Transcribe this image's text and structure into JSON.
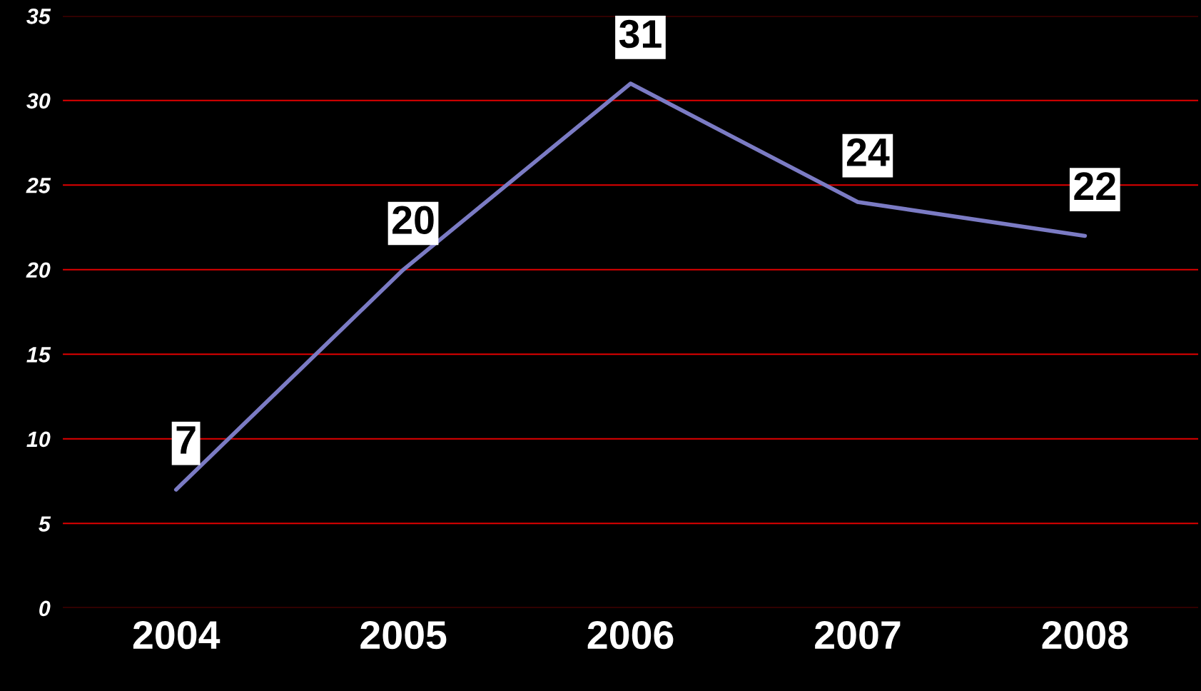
{
  "chart_data": {
    "type": "line",
    "categories": [
      "2004",
      "2005",
      "2006",
      "2007",
      "2008"
    ],
    "series": [
      {
        "color": "#7b7bc4",
        "values": [
          7,
          20,
          31,
          24,
          22
        ]
      }
    ],
    "ylim": [
      0,
      35
    ],
    "yticks": [
      0,
      5,
      10,
      15,
      20,
      25,
      30,
      35
    ],
    "grid": "y",
    "data_labels": true,
    "marker": "none",
    "line_style": "solid"
  }
}
